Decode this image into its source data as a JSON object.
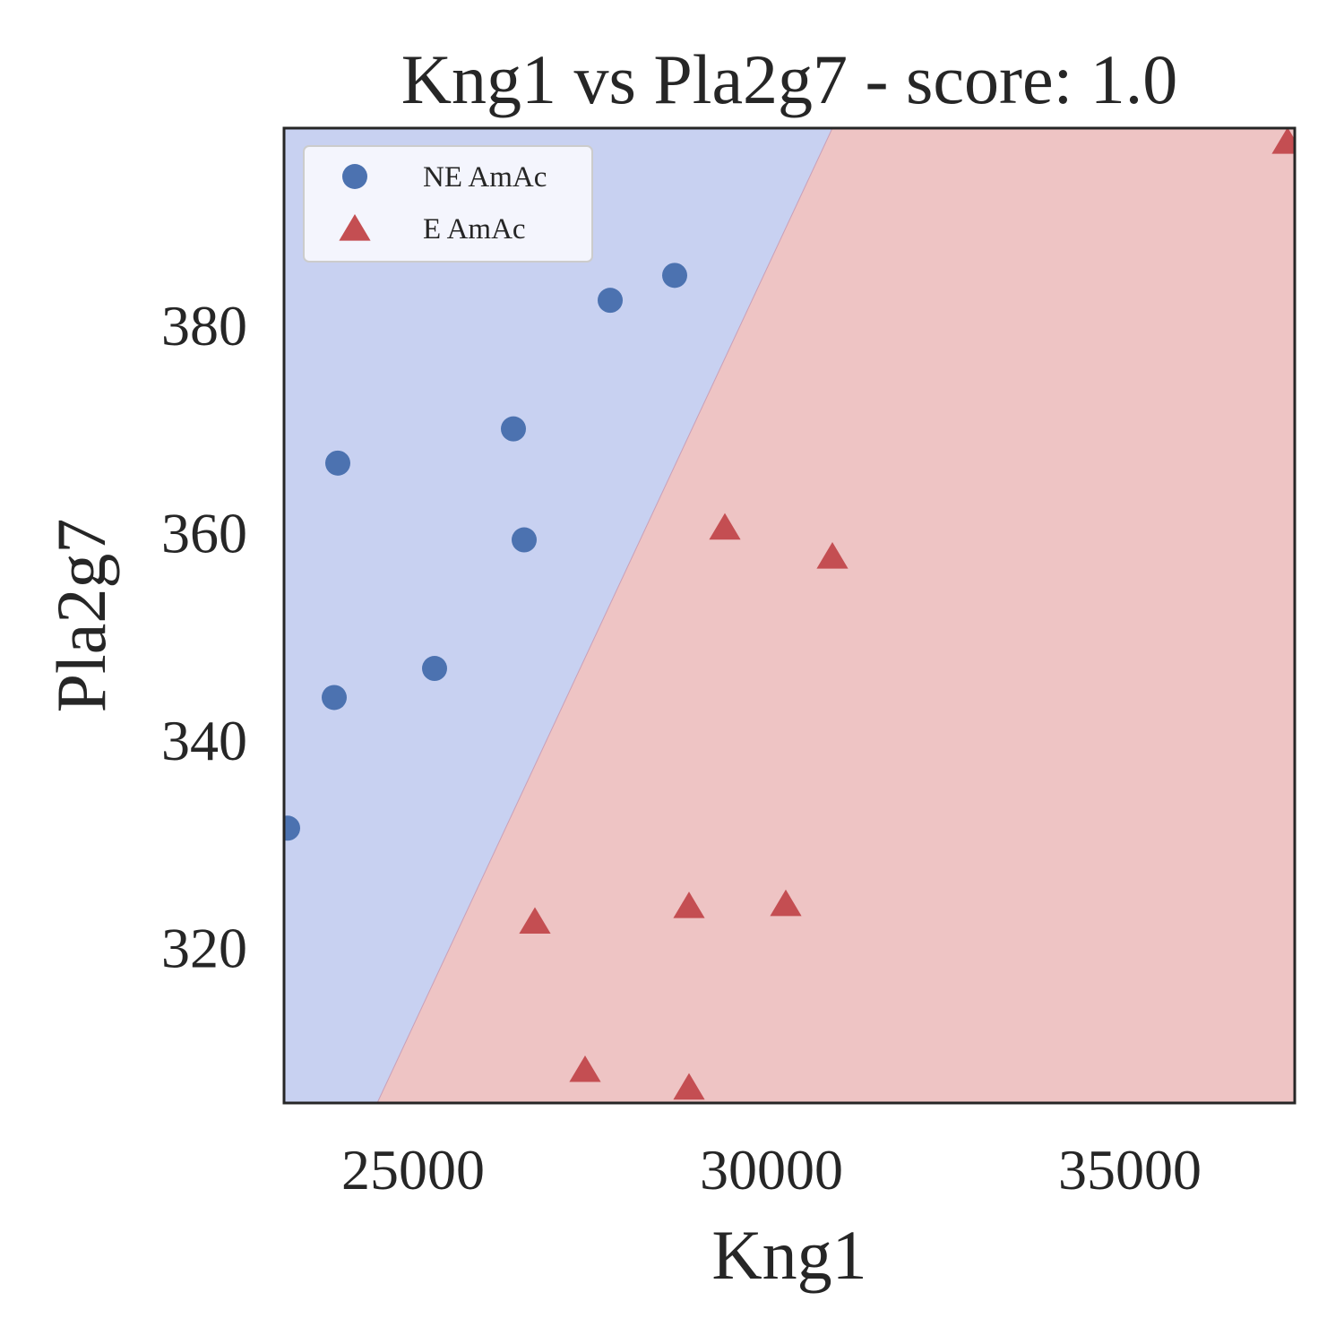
{
  "chart_data": {
    "type": "scatter",
    "title": "Kng1 vs Pla2g7 - score: 1.0",
    "xlabel": "Kng1",
    "ylabel": "Pla2g7",
    "xlim": [
      23200,
      37300
    ],
    "ylim": [
      305,
      399
    ],
    "xticks": [
      25000,
      30000,
      35000
    ],
    "yticks": [
      320,
      340,
      360,
      380
    ],
    "grid": false,
    "legend_position": "top-left",
    "decision_boundary": {
      "line": [
        [
          24500,
          305
        ],
        [
          30850,
          399
        ]
      ],
      "left_class": "NE AmAc",
      "right_class": "E AmAc"
    },
    "series": [
      {
        "name": "NE AmAc",
        "marker": "circle",
        "color": "#4c72b0",
        "region_color": "#c8d1f1",
        "points": [
          [
            23250,
            331.5
          ],
          [
            23900,
            344.1
          ],
          [
            23950,
            366.7
          ],
          [
            25300,
            346.9
          ],
          [
            26400,
            370.0
          ],
          [
            26550,
            359.3
          ],
          [
            27750,
            382.4
          ],
          [
            28650,
            384.8
          ]
        ]
      },
      {
        "name": "E AmAc",
        "marker": "triangle",
        "color": "#c44e52",
        "region_color": "#eec4c4",
        "points": [
          [
            26700,
            322.5
          ],
          [
            27400,
            308.2
          ],
          [
            28850,
            324.0
          ],
          [
            28850,
            306.5
          ],
          [
            29350,
            360.5
          ],
          [
            30200,
            324.2
          ],
          [
            30850,
            357.7
          ],
          [
            37200,
            397.7
          ]
        ]
      }
    ]
  }
}
